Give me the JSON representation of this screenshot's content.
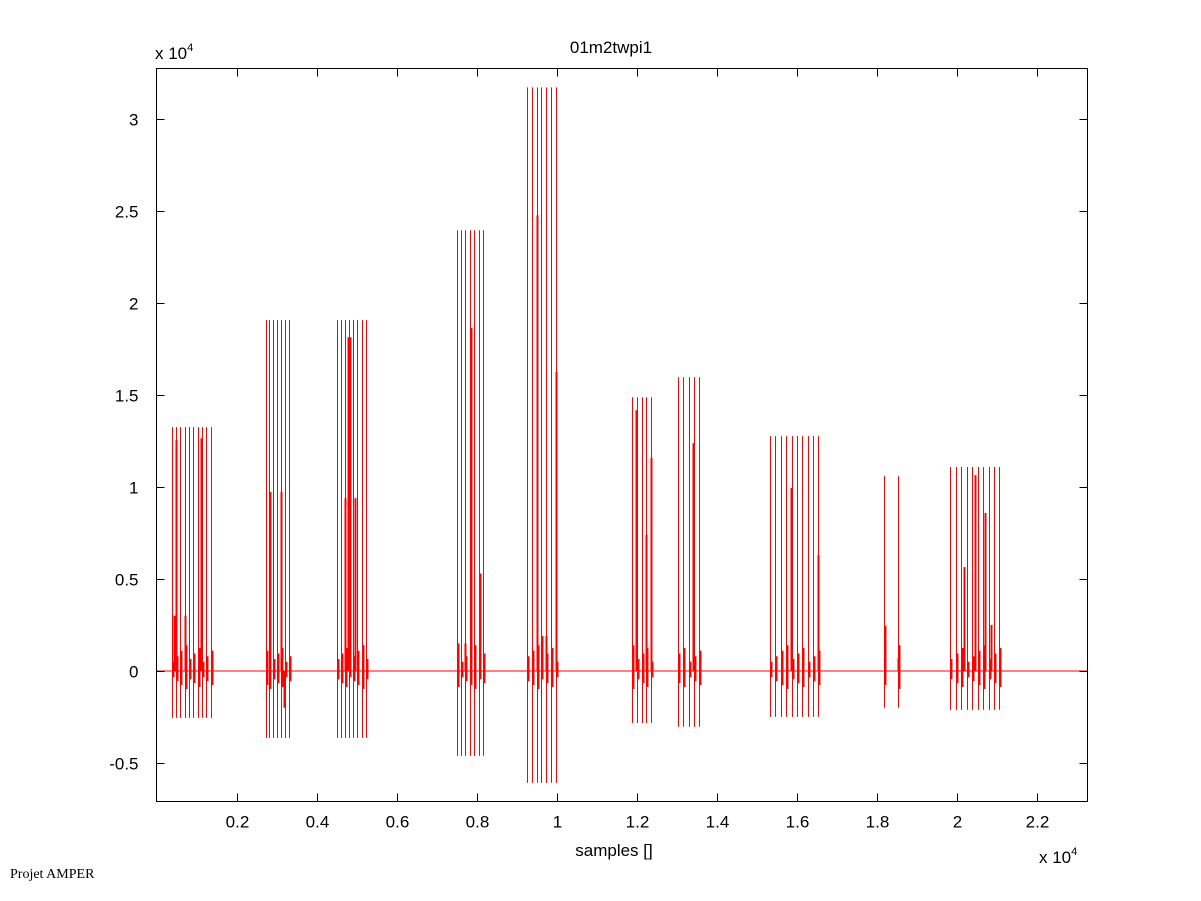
{
  "chart_data": {
    "type": "line",
    "title": "01m2twpi1",
    "xlabel": "samples []",
    "ylabel": "",
    "x_multiplier": {
      "base": "x 10",
      "exp": "4"
    },
    "y_multiplier": {
      "base": "x 10",
      "exp": "4"
    },
    "xlim": [
      0,
      23250
    ],
    "ylim": [
      -7100,
      32767
    ],
    "x_ticks": [
      2000,
      4000,
      6000,
      8000,
      10000,
      12000,
      14000,
      16000,
      18000,
      20000,
      22000
    ],
    "x_tick_labels": [
      "0.2",
      "0.4",
      "0.6",
      "0.8",
      "1",
      "1.2",
      "1.4",
      "1.6",
      "1.8",
      "2",
      "2.2"
    ],
    "y_ticks": [
      -5000,
      0,
      5000,
      10000,
      15000,
      20000,
      25000,
      30000
    ],
    "y_tick_labels": [
      "-0.5",
      "0",
      "0.5",
      "1",
      "1.5",
      "2",
      "2.5",
      "3"
    ],
    "grid": false,
    "series_color": "#ff0000",
    "bursts": [
      {
        "x_start": 375,
        "x_end": 1350,
        "lines": 10,
        "max": 13260,
        "min": -2550,
        "spikes": [
          [
            475,
            12550
          ],
          [
            1100,
            12660
          ],
          [
            425,
            3000
          ],
          [
            700,
            3000
          ]
        ]
      },
      {
        "x_start": 2725,
        "x_end": 3300,
        "lines": 7,
        "max": 19080,
        "min": -3640,
        "spikes": [
          [
            2825,
            9730
          ],
          [
            3100,
            9730
          ],
          [
            3175,
            -2000
          ]
        ]
      },
      {
        "x_start": 4500,
        "x_end": 5225,
        "lines": 8,
        "max": 19080,
        "min": -3640,
        "spikes": [
          [
            4700,
            9400
          ],
          [
            4775,
            18150
          ],
          [
            4825,
            18150
          ],
          [
            4950,
            9400
          ]
        ]
      },
      {
        "x_start": 7500,
        "x_end": 8150,
        "lines": 7,
        "max": 23970,
        "min": -4620,
        "spikes": [
          [
            7850,
            18650
          ],
          [
            8075,
            5300
          ],
          [
            7525,
            1500
          ],
          [
            7700,
            1500
          ]
        ]
      },
      {
        "x_start": 9250,
        "x_end": 9975,
        "lines": 7,
        "max": 31740,
        "min": -6090,
        "spikes": [
          [
            9500,
            24780
          ],
          [
            9975,
            16250
          ],
          [
            9625,
            1900
          ],
          [
            9725,
            1900
          ]
        ]
      },
      {
        "x_start": 11875,
        "x_end": 12350,
        "lines": 5,
        "max": 14890,
        "min": -2830,
        "spikes": [
          [
            11975,
            14180
          ],
          [
            12225,
            7400
          ],
          [
            12350,
            11580
          ]
        ]
      },
      {
        "x_start": 13025,
        "x_end": 13550,
        "lines": 5,
        "max": 15980,
        "min": -3040,
        "spikes": [
          [
            13400,
            12390
          ]
        ]
      },
      {
        "x_start": 15325,
        "x_end": 16525,
        "lines": 10,
        "max": 12770,
        "min": -2500,
        "spikes": [
          [
            15850,
            9950
          ],
          [
            16525,
            6300
          ]
        ]
      },
      {
        "x_start": 18175,
        "x_end": 18525,
        "lines": 2,
        "max": 10600,
        "min": -2000,
        "spikes": [
          [
            18200,
            2450
          ],
          [
            18525,
            700
          ]
        ]
      },
      {
        "x_start": 19825,
        "x_end": 21050,
        "lines": 10,
        "max": 11090,
        "min": -2120,
        "spikes": [
          [
            20175,
            5650
          ],
          [
            20450,
            10650
          ],
          [
            20700,
            8590
          ],
          [
            20850,
            2500
          ]
        ]
      }
    ]
  },
  "footer": "Projet AMPER"
}
